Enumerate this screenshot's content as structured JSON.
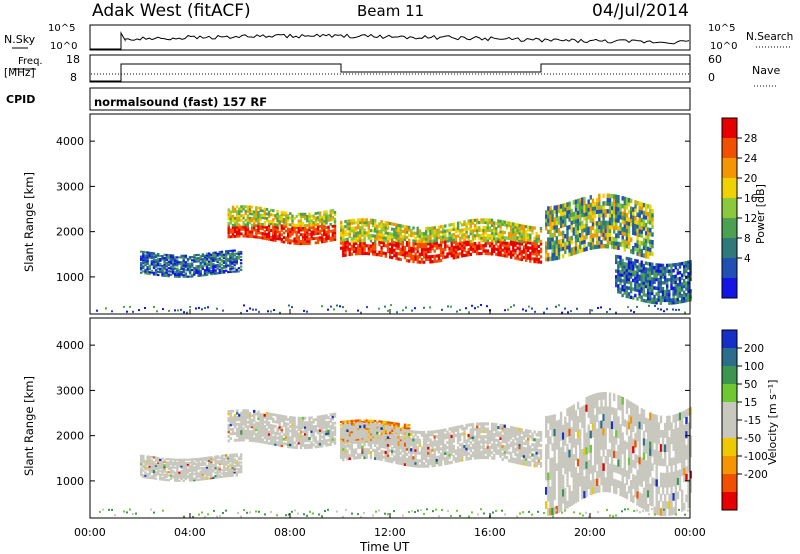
{
  "header": {
    "site": "Adak West (fitACF)",
    "beam": "Beam 11",
    "date": "04/Jul/2014"
  },
  "strip": {
    "nsky_label": "N.Sky",
    "nsky_ticks": [
      "10^5",
      "10^0"
    ],
    "nsearch_label": "N.Search",
    "nsearch_ticks": [
      "10^5",
      "10^0"
    ],
    "freq_label": "Freq.",
    "freq_unit": "[MHz]",
    "freq_ticks": [
      "18",
      "8"
    ],
    "nave_label": "Nave",
    "nave_ticks": [
      "60",
      "0"
    ],
    "cpid_label": "CPID",
    "cpid_value": "normalsound (fast) 157 RF"
  },
  "x_axis": {
    "label": "Time UT",
    "ticks": [
      "00:00",
      "04:00",
      "08:00",
      "12:00",
      "16:00",
      "20:00",
      "00:00"
    ]
  },
  "colors": {
    "power": [
      "#1414e6",
      "#2050b4",
      "#2e7a7a",
      "#4da050",
      "#8cc83c",
      "#f0d200",
      "#f59600",
      "#f05000",
      "#e60000"
    ],
    "velocity": [
      "#e60000",
      "#f05000",
      "#f59600",
      "#f0c800",
      "#c8c8be",
      "#c8c8be",
      "#6ec832",
      "#3c9650",
      "#2a6e8c",
      "#1430c8"
    ]
  },
  "chart_data": [
    {
      "type": "heatmap",
      "panel": "power",
      "ylabel": "Slant Range [km]",
      "xlabel": "Time UT",
      "xlim": [
        0,
        24
      ],
      "ylim": [
        180,
        4600
      ],
      "yticks": [
        "4000",
        "3000",
        "2000",
        "1000"
      ],
      "colorbar": {
        "label": "Power [dB]",
        "ticks": [
          "28",
          "24",
          "20",
          "16",
          "12",
          "8",
          "4"
        ]
      },
      "bands": [
        {
          "t": [
            2.0,
            6.0
          ],
          "range": [
            1050,
            1550
          ],
          "level": "low"
        },
        {
          "t": [
            5.5,
            9.8
          ],
          "range": [
            1800,
            2500
          ],
          "level": "high"
        },
        {
          "t": [
            10.0,
            18.0
          ],
          "range": [
            1400,
            2200
          ],
          "level": "high"
        },
        {
          "t": [
            18.2,
            22.5
          ],
          "range": [
            1500,
            2700
          ],
          "level": "mid"
        },
        {
          "t": [
            21.0,
            24.0
          ],
          "range": [
            500,
            1400
          ],
          "level": "low"
        }
      ]
    },
    {
      "type": "heatmap",
      "panel": "velocity",
      "ylabel": "Slant Range [km]",
      "xlabel": "Time UT",
      "xlim": [
        0,
        24
      ],
      "ylim": [
        180,
        4600
      ],
      "yticks": [
        "4000",
        "3000",
        "2000",
        "1000"
      ],
      "colorbar": {
        "label": "Velocity [m s⁻¹]",
        "ticks": [
          "200",
          "100",
          "50",
          "15",
          "-15",
          "-50",
          "-100",
          "-200"
        ]
      },
      "bands": [
        {
          "t": [
            2.0,
            6.0
          ],
          "range": [
            1050,
            1550
          ],
          "level": "ground"
        },
        {
          "t": [
            5.5,
            9.8
          ],
          "range": [
            1800,
            2500
          ],
          "level": "ground"
        },
        {
          "t": [
            10.0,
            12.8
          ],
          "range": [
            1800,
            2300
          ],
          "level": "neg"
        },
        {
          "t": [
            10.0,
            18.0
          ],
          "range": [
            1400,
            2200
          ],
          "level": "ground"
        },
        {
          "t": [
            18.2,
            24.0
          ],
          "range": [
            500,
            2700
          ],
          "level": "ground"
        }
      ]
    }
  ]
}
